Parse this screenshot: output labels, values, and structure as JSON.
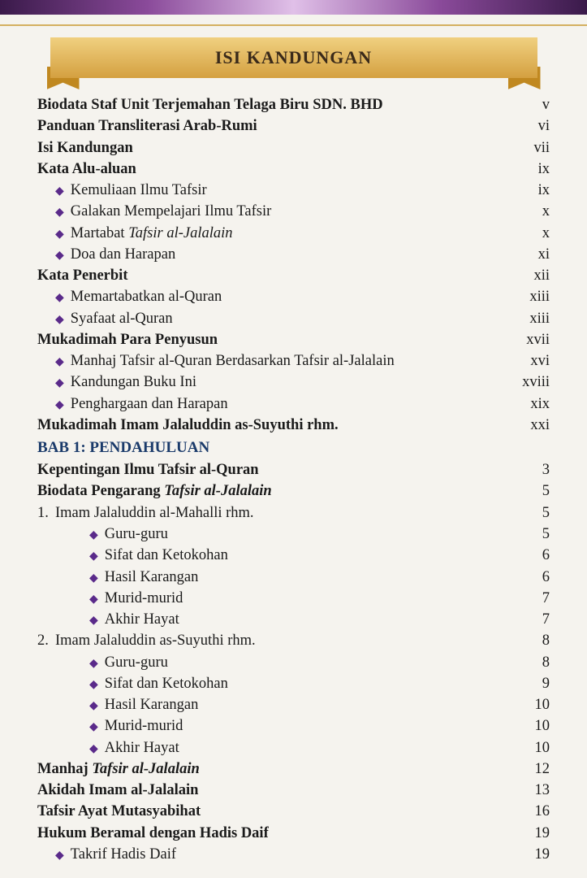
{
  "banner_title": "ISI KANDUNGAN",
  "entries": [
    {
      "label": "Biodata Staf Unit Terjemahan Telaga Biru SDN. BHD",
      "page": "v",
      "bold": true
    },
    {
      "label": "Panduan Transliterasi Arab-Rumi",
      "page": "vi",
      "bold": true
    },
    {
      "label": "Isi Kandungan",
      "page": "vii",
      "bold": true
    },
    {
      "label": "Kata Alu-aluan",
      "page": "ix",
      "bold": true
    },
    {
      "label": "Kemuliaan Ilmu Tafsir",
      "page": "ix",
      "bullet": true,
      "indent": 1
    },
    {
      "label": "Galakan Mempelajari Ilmu Tafsir",
      "page": "x",
      "bullet": true,
      "indent": 1
    },
    {
      "label_html": "Martabat <i>Tafsir al-Jalalain</i>",
      "page": "x",
      "bullet": true,
      "indent": 1
    },
    {
      "label": "Doa dan Harapan",
      "page": "xi",
      "bullet": true,
      "indent": 1
    },
    {
      "label": "Kata Penerbit",
      "page": "xii",
      "bold": true
    },
    {
      "label": "Memartabatkan al-Quran",
      "page": "xiii",
      "bullet": true,
      "indent": 1
    },
    {
      "label": "Syafaat al-Quran",
      "page": "xiii",
      "bullet": true,
      "indent": 1
    },
    {
      "label": "Mukadimah Para Penyusun",
      "page": "xvii",
      "bold": true
    },
    {
      "label": "Manhaj Tafsir al-Quran Berdasarkan Tafsir al-Jalalain",
      "page": "xvi",
      "bullet": true,
      "indent": 1
    },
    {
      "label": "Kandungan Buku Ini",
      "page": "xviii",
      "bullet": true,
      "indent": 1
    },
    {
      "label": "Penghargaan dan Harapan",
      "page": "xix",
      "bullet": true,
      "indent": 1
    },
    {
      "label": "Mukadimah Imam Jalaluddin as-Suyuthi rhm.",
      "page": "xxi",
      "bold": true
    },
    {
      "label": "BAB 1: PENDAHULUAN",
      "chapter": true
    },
    {
      "label": "Kepentingan Ilmu Tafsir al-Quran",
      "page": "3",
      "bold": true
    },
    {
      "label_html": "Biodata Pengarang <i>Tafsir al-Jalalain</i>",
      "page": "5",
      "bold": true
    },
    {
      "num": "1.",
      "label": "Imam Jalaluddin al-Mahalli rhm.",
      "page": "5"
    },
    {
      "label": "Guru-guru",
      "page": "5",
      "bullet": true,
      "indent": 2
    },
    {
      "label": "Sifat dan Ketokohan",
      "page": "6",
      "bullet": true,
      "indent": 2
    },
    {
      "label": "Hasil Karangan",
      "page": "6",
      "bullet": true,
      "indent": 2
    },
    {
      "label": "Murid-murid",
      "page": "7",
      "bullet": true,
      "indent": 2
    },
    {
      "label": "Akhir Hayat",
      "page": "7",
      "bullet": true,
      "indent": 2
    },
    {
      "num": "2.",
      "label": "Imam Jalaluddin as-Suyuthi rhm.",
      "page": "8"
    },
    {
      "label": "Guru-guru",
      "page": "8",
      "bullet": true,
      "indent": 2
    },
    {
      "label": "Sifat dan Ketokohan",
      "page": "9",
      "bullet": true,
      "indent": 2
    },
    {
      "label": "Hasil Karangan",
      "page": "10",
      "bullet": true,
      "indent": 2
    },
    {
      "label": "Murid-murid",
      "page": "10",
      "bullet": true,
      "indent": 2
    },
    {
      "label": "Akhir Hayat",
      "page": "10",
      "bullet": true,
      "indent": 2
    },
    {
      "label_html": "Manhaj <i>Tafsir al-Jalalain</i>",
      "page": "12",
      "bold": true
    },
    {
      "label": "Akidah Imam al-Jalalain",
      "page": "13",
      "bold": true
    },
    {
      "label": "Tafsir Ayat Mutasyabihat",
      "page": "16",
      "bold": true
    },
    {
      "label": "Hukum Beramal dengan Hadis Daif",
      "page": "19",
      "bold": true
    },
    {
      "label": "Takrif Hadis Daif",
      "page": "19",
      "bullet": true,
      "indent": 1
    }
  ]
}
